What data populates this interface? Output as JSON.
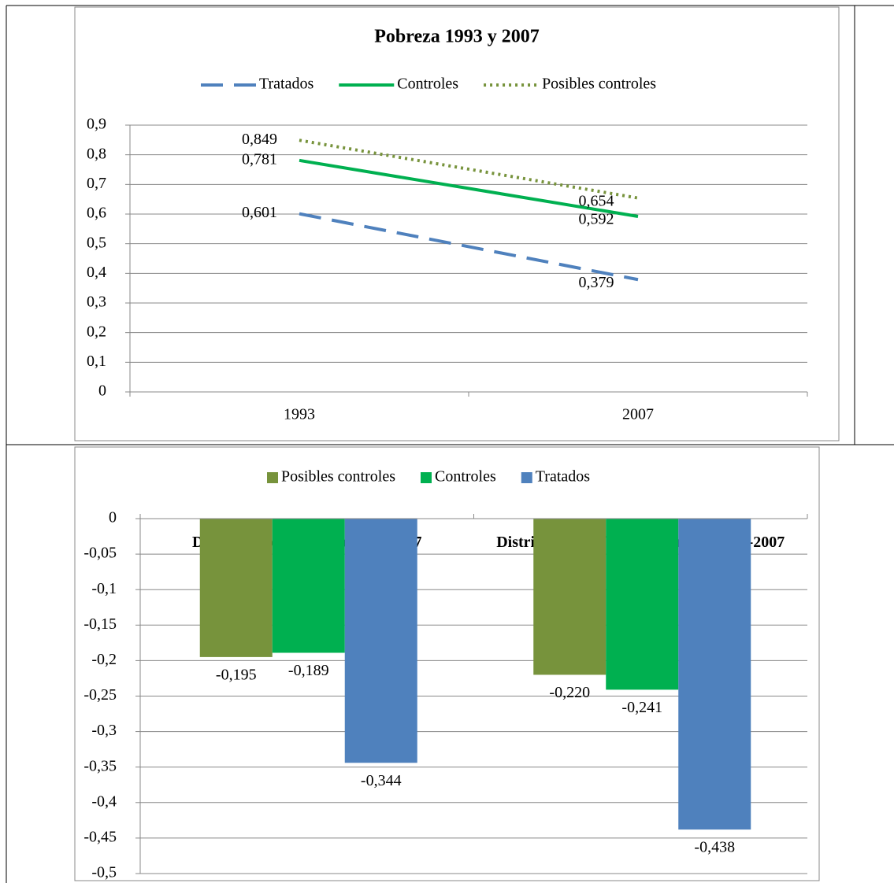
{
  "chart_data": [
    {
      "type": "line",
      "title": "Pobreza 1993 y 2007",
      "categories": [
        "1993",
        "2007"
      ],
      "series": [
        {
          "name": "Tratados",
          "color": "#4f81bd",
          "line_style": "dashed",
          "values": [
            0.601,
            0.379
          ],
          "value_labels": [
            "0,601",
            "0,379"
          ]
        },
        {
          "name": "Controles",
          "color": "#00b050",
          "line_style": "solid",
          "values": [
            0.781,
            0.592
          ],
          "value_labels": [
            "0,781",
            "0,592"
          ]
        },
        {
          "name": "Posibles controles",
          "color": "#77933c",
          "line_style": "dotted",
          "values": [
            0.849,
            0.654
          ],
          "value_labels": [
            "0,849",
            "0,654"
          ]
        }
      ],
      "ylim": [
        0,
        0.9
      ],
      "yticks": [
        0,
        {
          "value": 0.1,
          "label": "0,1"
        },
        {
          "value": 0.2,
          "label": "0,2"
        },
        {
          "value": 0.3,
          "label": "0,3"
        },
        {
          "value": 0.4,
          "label": "0,4"
        },
        {
          "value": 0.5,
          "label": "0,5"
        },
        {
          "value": 0.6,
          "label": "0,6"
        },
        {
          "value": 0.7,
          "label": "0,7"
        },
        {
          "value": 0.8,
          "label": "0,8"
        },
        {
          "value": 0.9,
          "label": "0,9"
        }
      ],
      "grid": true,
      "legend": "top"
    },
    {
      "type": "bar",
      "categories": [
        "District poverty change 1993-2007",
        "District speed of poverty change 1993-2007"
      ],
      "series": [
        {
          "name": "Posibles controles",
          "color": "#77933c",
          "values": [
            -0.195,
            -0.22
          ],
          "value_labels": [
            "-0,195",
            "-0,220"
          ]
        },
        {
          "name": "Controles",
          "color": "#00b050",
          "values": [
            -0.189,
            -0.241
          ],
          "value_labels": [
            "-0,189",
            "-0,241"
          ]
        },
        {
          "name": "Tratados",
          "color": "#4f81bd",
          "values": [
            -0.344,
            -0.438
          ],
          "value_labels": [
            "-0,344",
            "-0,438"
          ]
        }
      ],
      "ylim": [
        -0.5,
        0
      ],
      "yticks": [
        0,
        {
          "value": -0.05,
          "label": "-0,05"
        },
        {
          "value": -0.1,
          "label": "-0,1"
        },
        {
          "value": -0.15,
          "label": "-0,15"
        },
        {
          "value": -0.2,
          "label": "-0,2"
        },
        {
          "value": -0.25,
          "label": "-0,25"
        },
        {
          "value": -0.3,
          "label": "-0,3"
        },
        {
          "value": -0.35,
          "label": "-0,35"
        },
        {
          "value": -0.4,
          "label": "-0,4"
        },
        {
          "value": -0.45,
          "label": "-0,45"
        },
        {
          "value": -0.5,
          "label": "-0,5"
        }
      ],
      "grid": true,
      "legend": "top"
    }
  ]
}
